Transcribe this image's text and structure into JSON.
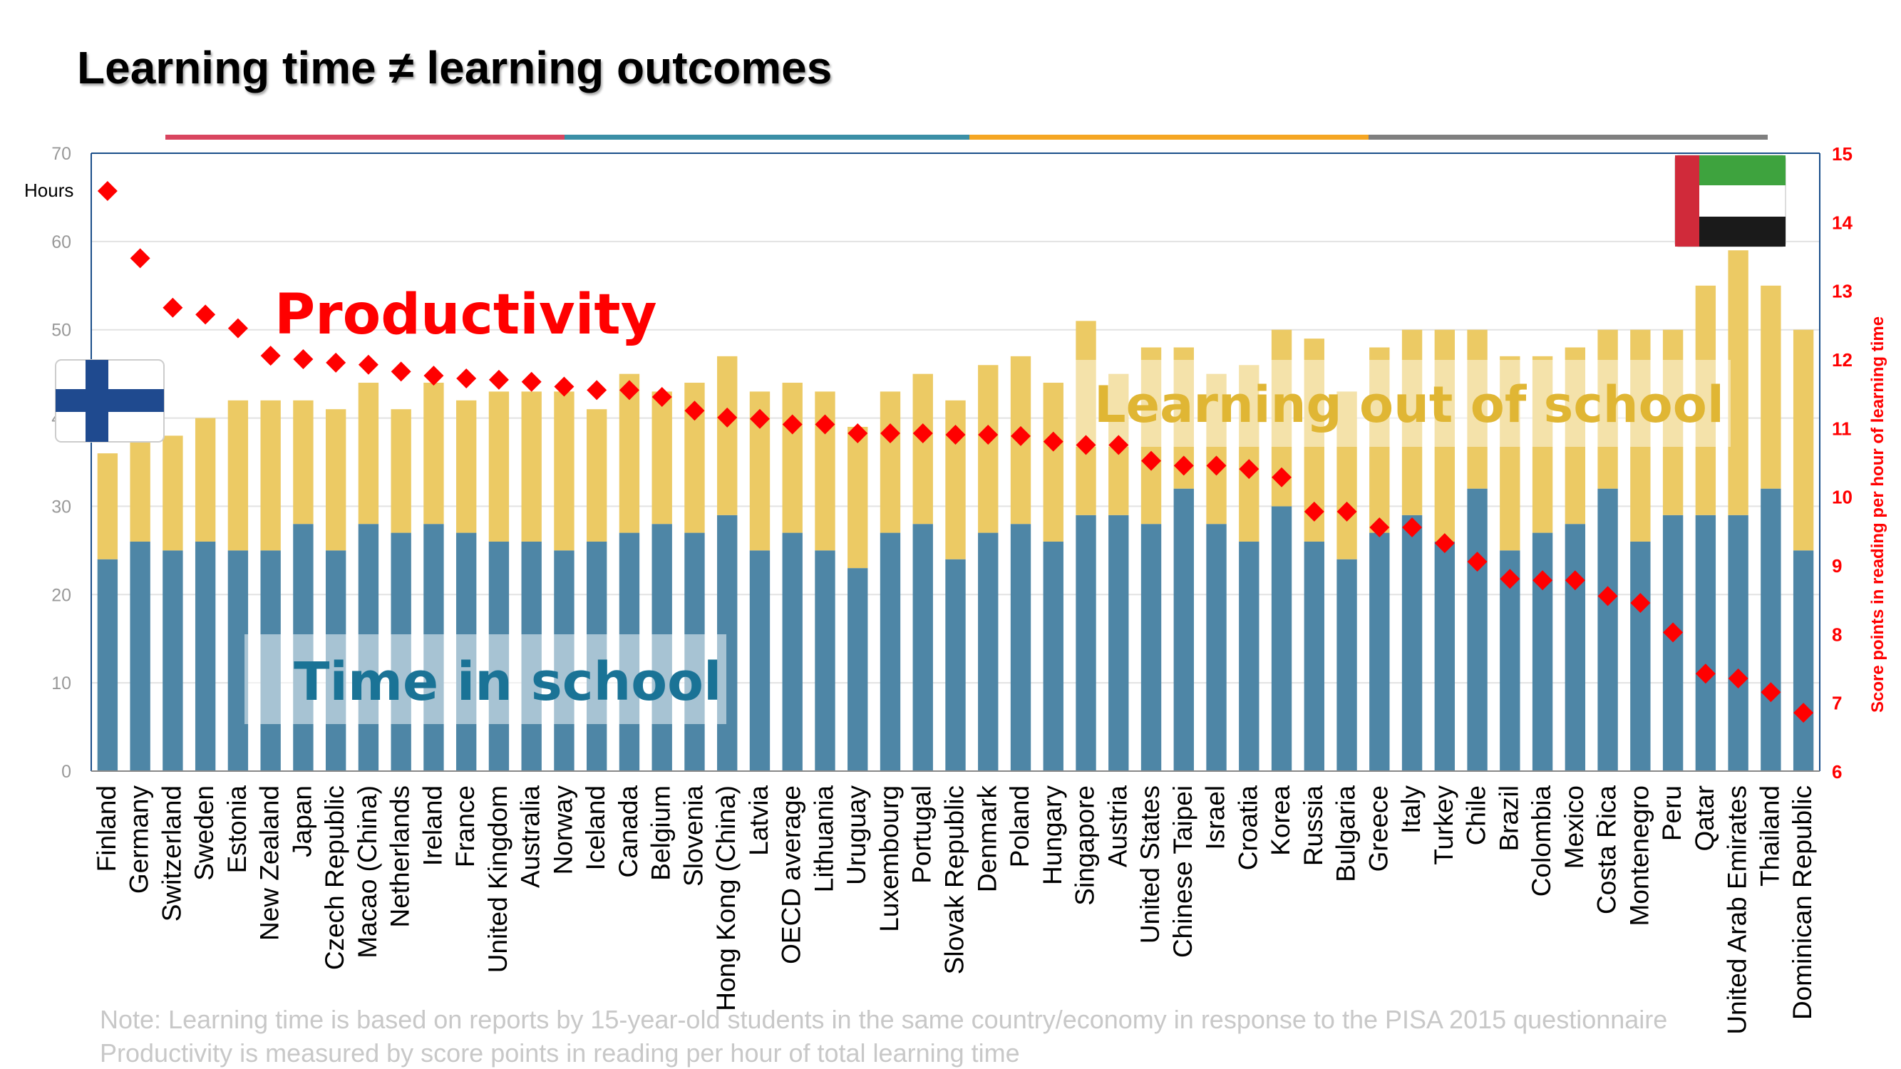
{
  "title": "Learning time ≠ learning outcomes",
  "notes": [
    "Note: Learning time is based on reports by 15-year-old students in the same country/economy in response to the PISA 2015 questionnaire",
    "Productivity is measured by score points in reading per hour of total learning time"
  ],
  "colors": {
    "school": "#4e86a6",
    "out_of_school": "#ecca64",
    "productivity": "#ff0000",
    "band": [
      "#d9455f",
      "#3b8fa6",
      "#f5a623",
      "#7f7f7f"
    ]
  },
  "flags": {
    "left": "finland-flag",
    "right": "uae-flag"
  },
  "chart_data": {
    "type": "bar",
    "stacked": true,
    "categories": [
      "Finland",
      "Germany",
      "Switzerland",
      "Sweden",
      "Estonia",
      "New Zealand",
      "Japan",
      "Czech Republic",
      "Macao (China)",
      "Netherlands",
      "Ireland",
      "France",
      "United Kingdom",
      "Australia",
      "Norway",
      "Iceland",
      "Canada",
      "Belgium",
      "Slovenia",
      "Hong Kong (China)",
      "Latvia",
      "OECD average",
      "Lithuania",
      "Uruguay",
      "Luxembourg",
      "Portugal",
      "Slovak Republic",
      "Denmark",
      "Poland",
      "Hungary",
      "Singapore",
      "Austria",
      "United States",
      "Chinese Taipei",
      "Israel",
      "Croatia",
      "Korea",
      "Russia",
      "Bulgaria",
      "Greece",
      "Italy",
      "Turkey",
      "Chile",
      "Brazil",
      "Colombia",
      "Mexico",
      "Costa Rica",
      "Montenegro",
      "Peru",
      "Qatar",
      "United Arab Emirates",
      "Thailand",
      "Dominican Republic"
    ],
    "series": [
      {
        "name": "Time in school",
        "axis": "left",
        "values": [
          24,
          26,
          25,
          26,
          25,
          25,
          28,
          25,
          28,
          27,
          28,
          27,
          26,
          26,
          25,
          26,
          27,
          28,
          27,
          29,
          25,
          27,
          25,
          23,
          27,
          28,
          24,
          27,
          28,
          26,
          29,
          29,
          28,
          32,
          28,
          26,
          30,
          26,
          24,
          27,
          29,
          26,
          32,
          25,
          27,
          28,
          32,
          26,
          29,
          29,
          29,
          32,
          25
        ]
      },
      {
        "name": "Learning out of school",
        "axis": "left",
        "values": [
          12,
          12,
          13,
          14,
          17,
          17,
          14,
          16,
          16,
          14,
          16,
          15,
          17,
          17,
          18,
          15,
          18,
          15,
          17,
          18,
          18,
          17,
          18,
          16,
          16,
          17,
          18,
          19,
          19,
          18,
          22,
          16,
          20,
          16,
          17,
          20,
          20,
          23,
          19,
          21,
          21,
          24,
          18,
          22,
          20,
          20,
          18,
          24,
          21,
          26,
          30,
          23,
          25
        ]
      },
      {
        "name": "Productivity",
        "type": "scatter",
        "axis": "right",
        "values": [
          14.45,
          13.47,
          12.75,
          12.65,
          12.45,
          12.05,
          12.0,
          11.95,
          11.92,
          11.82,
          11.76,
          11.72,
          11.7,
          11.67,
          11.6,
          11.55,
          11.55,
          11.45,
          11.25,
          11.15,
          11.13,
          11.05,
          11.05,
          10.92,
          10.92,
          10.92,
          10.9,
          10.9,
          10.88,
          10.8,
          10.75,
          10.75,
          10.52,
          10.45,
          10.45,
          10.4,
          10.28,
          9.78,
          9.78,
          9.55,
          9.55,
          9.32,
          9.05,
          8.8,
          8.78,
          8.78,
          8.55,
          8.45,
          8.02,
          7.42,
          7.35,
          7.15,
          6.85
        ]
      }
    ],
    "y_left": {
      "label": "Hours",
      "ticks": [
        0,
        10,
        20,
        30,
        40,
        50,
        60,
        70
      ],
      "ylim": [
        0,
        70
      ]
    },
    "y_right": {
      "label": "Score points in reading per hour of learning time",
      "ticks": [
        6,
        7,
        8,
        9,
        10,
        11,
        12,
        13,
        14,
        15
      ],
      "ylim": [
        6,
        15
      ]
    },
    "annotations": [
      "Productivity",
      "Learning out of school",
      "Time in school"
    ],
    "grid": true
  }
}
